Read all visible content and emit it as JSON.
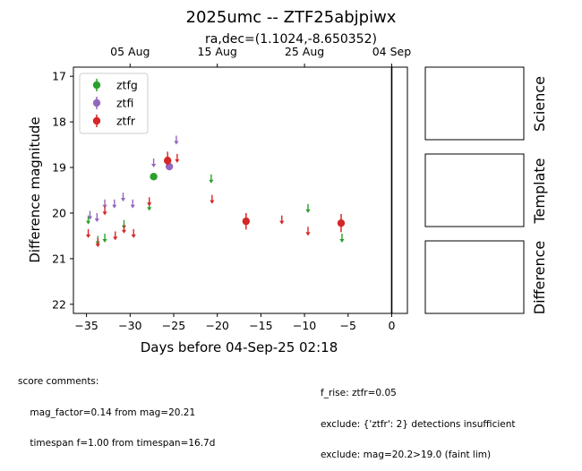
{
  "chart_data": {
    "type": "scatter",
    "title": "2025umc -- ZTF25abjpiwx",
    "subtitle": "ra,dec=(1.1024,-8.650352)",
    "xlabel": "Days before 04-Sep-25 02:18",
    "ylabel": "Difference magnitude",
    "xlim": [
      -36.5,
      1.8
    ],
    "ylim": [
      22.2,
      16.8
    ],
    "x_ticks": [
      -35,
      -30,
      -25,
      -20,
      -15,
      -10,
      -5,
      0
    ],
    "x_tick_labels": [
      "−35",
      "−30",
      "−25",
      "−20",
      "−15",
      "−10",
      "−5",
      "0"
    ],
    "y_ticks": [
      17,
      18,
      19,
      20,
      21,
      22
    ],
    "y_tick_labels": [
      "17",
      "18",
      "19",
      "20",
      "21",
      "22"
    ],
    "top_ticks": [
      -30,
      -20,
      -10,
      0
    ],
    "top_tick_labels": [
      "05 Aug",
      "15 Aug",
      "25 Aug",
      "04 Sep"
    ],
    "reference_line_x": 0,
    "legend_position": "upper-left",
    "series": [
      {
        "name": "ztfg",
        "color": "#2ca02c",
        "detections": [
          {
            "x": -27.3,
            "y": 19.2,
            "err": 0.08
          }
        ],
        "upper_limits": [
          {
            "x": -34.8,
            "y": 20.15
          },
          {
            "x": -33.7,
            "y": 20.6
          },
          {
            "x": -32.9,
            "y": 20.55
          },
          {
            "x": -30.7,
            "y": 20.25
          },
          {
            "x": -27.8,
            "y": 19.85
          },
          {
            "x": -25.6,
            "y": 18.9
          },
          {
            "x": -20.7,
            "y": 19.25
          },
          {
            "x": -9.6,
            "y": 19.9
          },
          {
            "x": -5.7,
            "y": 20.55
          }
        ]
      },
      {
        "name": "ztfi",
        "color": "#9467bd",
        "detections": [
          {
            "x": -25.5,
            "y": 18.98,
            "err": 0.08
          }
        ],
        "upper_limits": [
          {
            "x": -34.6,
            "y": 20.05
          },
          {
            "x": -33.8,
            "y": 20.1
          },
          {
            "x": -32.9,
            "y": 19.8
          },
          {
            "x": -31.8,
            "y": 19.8
          },
          {
            "x": -30.8,
            "y": 19.65
          },
          {
            "x": -29.7,
            "y": 19.8
          },
          {
            "x": -27.3,
            "y": 18.9
          },
          {
            "x": -24.7,
            "y": 18.4
          }
        ]
      },
      {
        "name": "ztfr",
        "color": "#d62728",
        "detections": [
          {
            "x": -25.7,
            "y": 18.85,
            "err": 0.1
          },
          {
            "x": -16.7,
            "y": 20.18,
            "err": 0.18
          },
          {
            "x": -5.8,
            "y": 20.22,
            "err": 0.2
          }
        ],
        "upper_limits": [
          {
            "x": -34.8,
            "y": 20.45
          },
          {
            "x": -33.7,
            "y": 20.65
          },
          {
            "x": -32.9,
            "y": 19.95
          },
          {
            "x": -31.7,
            "y": 20.5
          },
          {
            "x": -30.7,
            "y": 20.35
          },
          {
            "x": -29.6,
            "y": 20.45
          },
          {
            "x": -27.8,
            "y": 19.75
          },
          {
            "x": -25.7,
            "y": 18.75
          },
          {
            "x": -24.6,
            "y": 18.8
          },
          {
            "x": -20.6,
            "y": 19.7
          },
          {
            "x": -12.6,
            "y": 20.15
          },
          {
            "x": -9.6,
            "y": 20.4
          }
        ]
      }
    ]
  },
  "stamps": {
    "labels": [
      "Science",
      "Template",
      "Difference"
    ]
  },
  "comments": {
    "left": [
      "score comments:",
      "    mag_factor=0.14 from mag=20.21",
      "    timespan f=1.00 from timespan=16.7d"
    ],
    "right": [
      "f_rise: ztfr=0.05",
      "exclude: {'ztfr': 2} detections insufficient",
      "exclude: mag=20.2>19.0 (faint lim)"
    ]
  }
}
